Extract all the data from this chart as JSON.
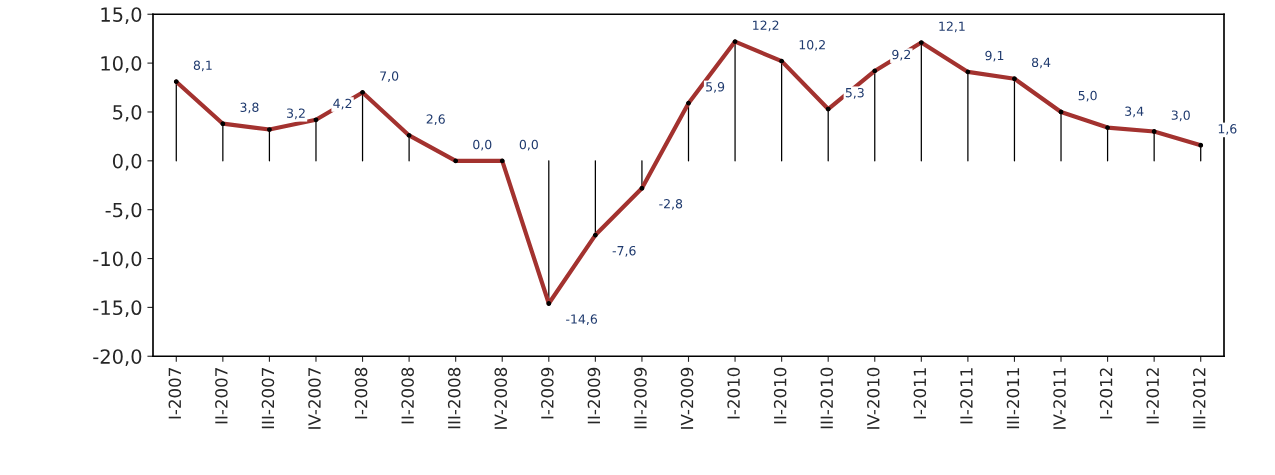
{
  "chart_data": {
    "type": "line",
    "categories": [
      "I-2007",
      "II-2007",
      "III-2007",
      "IV-2007",
      "I-2008",
      "II-2008",
      "III-2008",
      "IV-2008",
      "I-2009",
      "II-2009",
      "III-2009",
      "IV-2009",
      "I-2010",
      "II-2010",
      "III-2010",
      "IV-2010",
      "I-2011",
      "II-2011",
      "III-2011",
      "IV-2011",
      "I-2012",
      "II-2012",
      "III-2012"
    ],
    "series": [
      {
        "color": "#a3322f",
        "values": [
          8.1,
          3.8,
          3.2,
          4.2,
          7.0,
          2.6,
          0.0,
          0.0,
          -14.6,
          -7.6,
          -2.8,
          5.9,
          12.2,
          10.2,
          5.3,
          9.2,
          12.1,
          9.1,
          8.4,
          5.0,
          3.4,
          3.0,
          1.6
        ],
        "value_labels": [
          "8,1",
          "3,8",
          "3,2",
          "4,2",
          "7,0",
          "2,6",
          "0,0",
          "0,0",
          "-14,6",
          "-7,6",
          "-2,8",
          "5,9",
          "12,2",
          "10,2",
          "5,3",
          "9,2",
          "12,1",
          "9,1",
          "8,4",
          "5,0",
          "3,4",
          "3,0",
          "1,6"
        ]
      },
      {
        "type": "lollipop",
        "color": "#000000",
        "values": [
          8.1,
          3.8,
          3.2,
          4.2,
          7.0,
          2.6,
          0.0,
          0.0,
          -14.6,
          -7.6,
          -2.8,
          5.9,
          12.2,
          10.2,
          5.3,
          9.2,
          12.1,
          9.1,
          8.4,
          5.0,
          3.4,
          3.0,
          1.6
        ]
      }
    ],
    "ylim": [
      -20,
      15
    ],
    "yticks": [
      {
        "value": -20,
        "label": "-20,0"
      },
      {
        "value": -15,
        "label": "-15,0"
      },
      {
        "value": -10,
        "label": "-10,0"
      },
      {
        "value": -5,
        "label": "-5,0"
      },
      {
        "value": 0,
        "label": "0,0"
      },
      {
        "value": 5,
        "label": "5,0"
      },
      {
        "value": 10,
        "label": "10,0"
      },
      {
        "value": 15,
        "label": "15,0"
      }
    ],
    "marker": "none",
    "line_style": "solid"
  }
}
